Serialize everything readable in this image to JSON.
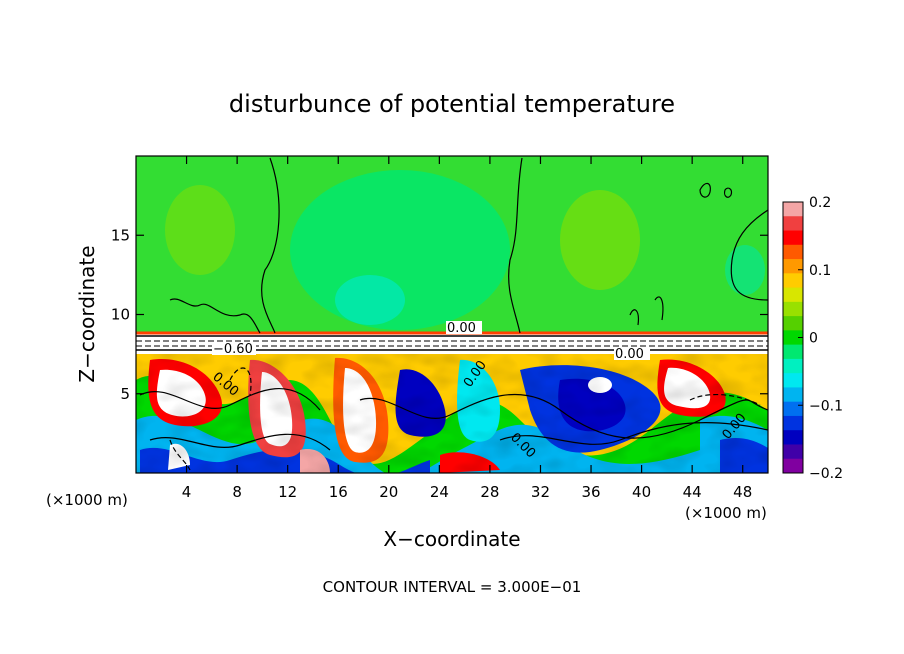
{
  "chart_data": {
    "type": "heatmap",
    "title": "disturbunce of potential temperature",
    "xlabel": "X−coordinate",
    "ylabel": "Z−coordinate",
    "x_unit_left": "(×1000 m)",
    "x_unit_right": "(×1000 m)",
    "xlim": [
      0,
      50
    ],
    "ylim": [
      0,
      20
    ],
    "xticks": [
      4,
      8,
      12,
      16,
      20,
      24,
      28,
      32,
      36,
      40,
      44,
      48
    ],
    "yticks": [
      5,
      10,
      15
    ],
    "colorbar": {
      "range": [
        -0.2,
        0.2
      ],
      "ticks": [
        "0.2",
        "0.1",
        "0",
        "−0.1",
        "−0.2"
      ],
      "tick_values": [
        0.2,
        0.1,
        0,
        -0.1,
        -0.2
      ],
      "colors": [
        "#f4a6a6",
        "#f04040",
        "#ff0000",
        "#ff5a00",
        "#ff9900",
        "#ffcc00",
        "#d8e600",
        "#99e000",
        "#55d000",
        "#00d800",
        "#00e870",
        "#00f0c0",
        "#00e8f0",
        "#00b4f0",
        "#0070f0",
        "#0033e0",
        "#0000c0",
        "#4000a8",
        "#8000a0"
      ]
    },
    "contour_interval": "CONTOUR INTERVAL = 3.000E−01",
    "contour_labels": [
      "0.00",
      "−0.60",
      "0.00",
      "0.00",
      "0.00",
      "0.00",
      "0.00"
    ]
  }
}
